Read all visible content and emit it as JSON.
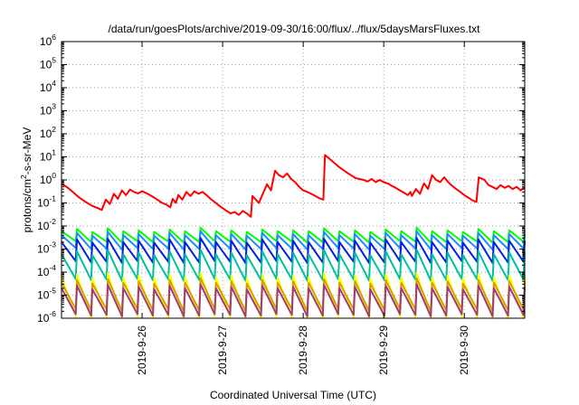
{
  "chart_data": {
    "type": "line",
    "title": "/data/run/goesPlots/archive/2019-09-30/16:00/flux/../flux/5daysMarsFluxes.txt",
    "xlabel": "Coordinated Universal Time (UTC)",
    "ylabel": "protons/cm2-s-sr-MeV",
    "ylabel_parts": [
      "protons/cm",
      "2",
      "-s-sr-MeV"
    ],
    "yscale": "log",
    "ylim": [
      "1e-6",
      "1e6"
    ],
    "ytick_exponents": [
      -6,
      -5,
      -4,
      -3,
      -2,
      -1,
      0,
      1,
      2,
      3,
      4,
      5,
      6
    ],
    "ytick_base": "10",
    "xlim_days": [
      25.0,
      30.75
    ],
    "x_ticks": [
      {
        "day": 26,
        "label": "2019-9-26"
      },
      {
        "day": 27,
        "label": "2019-9-27"
      },
      {
        "day": 28,
        "label": "2019-9-28"
      },
      {
        "day": 29,
        "label": "2019-9-29"
      },
      {
        "day": 30,
        "label": "2019-9-30"
      }
    ],
    "grid": true,
    "series": [
      {
        "color": "#ff0000",
        "width": 2,
        "points": [
          [
            25.0,
            0.7
          ],
          [
            25.08,
            0.45
          ],
          [
            25.15,
            0.28
          ],
          [
            25.22,
            0.17
          ],
          [
            25.3,
            0.11
          ],
          [
            25.38,
            0.075
          ],
          [
            25.45,
            0.06
          ],
          [
            25.5,
            0.05
          ],
          [
            25.55,
            0.14
          ],
          [
            25.6,
            0.09
          ],
          [
            25.65,
            0.25
          ],
          [
            25.7,
            0.15
          ],
          [
            25.75,
            0.35
          ],
          [
            25.8,
            0.22
          ],
          [
            25.85,
            0.38
          ],
          [
            25.9,
            0.3
          ],
          [
            25.95,
            0.26
          ],
          [
            26.0,
            0.32
          ],
          [
            26.08,
            0.24
          ],
          [
            26.15,
            0.17
          ],
          [
            26.2,
            0.13
          ],
          [
            26.25,
            0.1
          ],
          [
            26.3,
            0.085
          ],
          [
            26.35,
            0.065
          ],
          [
            26.38,
            0.15
          ],
          [
            26.42,
            0.1
          ],
          [
            26.45,
            0.22
          ],
          [
            26.5,
            0.14
          ],
          [
            26.55,
            0.3
          ],
          [
            26.6,
            0.2
          ],
          [
            26.65,
            0.32
          ],
          [
            26.7,
            0.25
          ],
          [
            26.75,
            0.3
          ],
          [
            26.8,
            0.22
          ],
          [
            26.85,
            0.15
          ],
          [
            26.9,
            0.11
          ],
          [
            26.95,
            0.08
          ],
          [
            27.0,
            0.06
          ],
          [
            27.05,
            0.045
          ],
          [
            27.1,
            0.035
          ],
          [
            27.15,
            0.04
          ],
          [
            27.2,
            0.03
          ],
          [
            27.25,
            0.045
          ],
          [
            27.3,
            0.035
          ],
          [
            27.35,
            0.025
          ],
          [
            27.37,
            0.2
          ],
          [
            27.45,
            0.1
          ],
          [
            27.55,
            0.65
          ],
          [
            27.6,
            0.35
          ],
          [
            27.65,
            2.5
          ],
          [
            27.7,
            1.6
          ],
          [
            27.75,
            1.3
          ],
          [
            27.8,
            1.9
          ],
          [
            27.85,
            1.1
          ],
          [
            27.9,
            0.8
          ],
          [
            27.95,
            0.5
          ],
          [
            28.0,
            0.35
          ],
          [
            28.05,
            0.3
          ],
          [
            28.1,
            0.25
          ],
          [
            28.15,
            0.2
          ],
          [
            28.2,
            0.16
          ],
          [
            28.25,
            0.14
          ],
          [
            28.27,
            12.0
          ],
          [
            28.35,
            7.0
          ],
          [
            28.45,
            3.5
          ],
          [
            28.55,
            2.0
          ],
          [
            28.65,
            1.2
          ],
          [
            28.75,
            1.0
          ],
          [
            28.8,
            0.85
          ],
          [
            28.85,
            1.1
          ],
          [
            28.9,
            0.8
          ],
          [
            28.95,
            1.0
          ],
          [
            29.0,
            0.8
          ],
          [
            29.05,
            0.7
          ],
          [
            29.1,
            0.55
          ],
          [
            29.15,
            0.45
          ],
          [
            29.2,
            0.35
          ],
          [
            29.25,
            0.28
          ],
          [
            29.3,
            0.22
          ],
          [
            29.33,
            0.3
          ],
          [
            29.35,
            0.2
          ],
          [
            29.4,
            0.4
          ],
          [
            29.45,
            0.25
          ],
          [
            29.5,
            0.7
          ],
          [
            29.55,
            0.4
          ],
          [
            29.6,
            1.6
          ],
          [
            29.65,
            1.0
          ],
          [
            29.7,
            0.8
          ],
          [
            29.75,
            1.3
          ],
          [
            29.8,
            0.8
          ],
          [
            29.85,
            0.55
          ],
          [
            29.9,
            0.4
          ],
          [
            29.95,
            0.3
          ],
          [
            30.0,
            0.22
          ],
          [
            30.05,
            0.17
          ],
          [
            30.1,
            0.13
          ],
          [
            30.15,
            0.11
          ],
          [
            30.18,
            1.3
          ],
          [
            30.25,
            1.0
          ],
          [
            30.3,
            0.6
          ],
          [
            30.35,
            0.5
          ],
          [
            30.4,
            0.4
          ],
          [
            30.45,
            0.6
          ],
          [
            30.5,
            0.45
          ],
          [
            30.55,
            0.55
          ],
          [
            30.6,
            0.4
          ],
          [
            30.65,
            0.5
          ],
          [
            30.7,
            0.35
          ],
          [
            30.75,
            0.5
          ]
        ]
      },
      {
        "color": "#00ff00",
        "width": 2,
        "sawtooth": true,
        "peaks": [
          0.006,
          0.0075,
          0.0055,
          0.008,
          0.006,
          0.0065,
          0.0055,
          0.007,
          0.006,
          0.0085,
          0.006,
          0.0065,
          0.0055,
          0.007,
          0.006,
          0.0065,
          0.006,
          0.008,
          0.006,
          0.0065,
          0.0055,
          0.007,
          0.006,
          0.0085,
          0.006,
          0.0065,
          0.0055,
          0.0075,
          0.006,
          0.0065
        ],
        "troughs": [
          0.0022,
          0.002,
          0.0021,
          0.0019,
          0.0022,
          0.002,
          0.0021,
          0.0019,
          0.002,
          0.0022,
          0.0021,
          0.0019,
          0.002,
          0.0022,
          0.0021,
          0.0019,
          0.002,
          0.0022,
          0.0021,
          0.0019,
          0.002,
          0.0022,
          0.0021,
          0.0019,
          0.002,
          0.0022,
          0.0021,
          0.0019,
          0.002,
          0.0021
        ]
      },
      {
        "color": "#1e8cff",
        "width": 2,
        "sawtooth": true,
        "peaks": [
          0.004,
          0.005,
          0.0038,
          0.0055,
          0.004,
          0.0045,
          0.0038,
          0.005,
          0.004,
          0.006,
          0.004,
          0.0045,
          0.0038,
          0.005,
          0.004,
          0.0045,
          0.004,
          0.0055,
          0.004,
          0.0045,
          0.0038,
          0.005,
          0.004,
          0.006,
          0.004,
          0.0045,
          0.0038,
          0.005,
          0.004,
          0.0045
        ],
        "troughs": [
          0.0011,
          0.001,
          0.00105,
          0.00095,
          0.0011,
          0.001,
          0.00105,
          0.00095,
          0.001,
          0.0011,
          0.00105,
          0.00095,
          0.001,
          0.0011,
          0.00105,
          0.00095,
          0.001,
          0.0011,
          0.00105,
          0.00095,
          0.001,
          0.0011,
          0.00105,
          0.00095,
          0.001,
          0.0011,
          0.00105,
          0.00095,
          0.001,
          0.00105
        ]
      },
      {
        "color": "#0020e0",
        "width": 2,
        "sawtooth": true,
        "peaks": [
          0.002,
          0.0026,
          0.0019,
          0.0028,
          0.002,
          0.0023,
          0.0019,
          0.0026,
          0.002,
          0.003,
          0.002,
          0.0023,
          0.0019,
          0.0026,
          0.002,
          0.0023,
          0.002,
          0.0028,
          0.002,
          0.0023,
          0.0019,
          0.0026,
          0.002,
          0.003,
          0.002,
          0.0023,
          0.0019,
          0.0026,
          0.002,
          0.0023
        ],
        "troughs": [
          0.0003,
          0.00026,
          0.00028,
          0.00025,
          0.0003,
          0.00026,
          0.00028,
          0.00025,
          0.00026,
          0.0003,
          0.00028,
          0.00025,
          0.00026,
          0.0003,
          0.00028,
          0.00025,
          0.00026,
          0.0003,
          0.00028,
          0.00025,
          0.00026,
          0.0003,
          0.00028,
          0.00025,
          0.00026,
          0.0003,
          0.00028,
          0.00025,
          0.00026,
          0.00028
        ]
      },
      {
        "color": "#00c0a0",
        "width": 2,
        "sawtooth": true,
        "peaks": [
          0.0006,
          0.0008,
          0.00055,
          0.0009,
          0.0006,
          0.0007,
          0.00055,
          0.0008,
          0.0006,
          0.00095,
          0.0006,
          0.0007,
          0.00055,
          0.0008,
          0.0006,
          0.0007,
          0.0006,
          0.0009,
          0.0006,
          0.0007,
          0.00055,
          0.0008,
          0.0006,
          0.00095,
          0.0006,
          0.0007,
          0.00055,
          0.0008,
          0.0006,
          0.0007
        ],
        "troughs": [
          5e-05,
          4.5e-05,
          4.8e-05,
          4.2e-05,
          5e-05,
          4.5e-05,
          4.8e-05,
          4.2e-05,
          4.5e-05,
          5e-05,
          4.8e-05,
          4.2e-05,
          4.5e-05,
          5e-05,
          4.8e-05,
          4.2e-05,
          4.5e-05,
          5e-05,
          4.8e-05,
          4.2e-05,
          4.5e-05,
          5e-05,
          4.8e-05,
          4.2e-05,
          4.5e-05,
          5e-05,
          4.8e-05,
          4.2e-05,
          4.5e-05,
          4.8e-05
        ]
      },
      {
        "color": "#ffff00",
        "width": 2,
        "sawtooth": true,
        "peaks": [
          6e-05,
          8e-05,
          5.5e-05,
          9e-05,
          6e-05,
          7e-05,
          5.5e-05,
          8e-05,
          6e-05,
          9.5e-05,
          6e-05,
          7e-05,
          5.5e-05,
          8e-05,
          6e-05,
          7e-05,
          6e-05,
          9e-05,
          6e-05,
          7e-05,
          5.5e-05,
          8e-05,
          6e-05,
          9.5e-05,
          6e-05,
          7e-05,
          5.5e-05,
          8e-05,
          6e-05,
          7e-05
        ],
        "troughs": [
          1.2e-06,
          1e-06,
          1.1e-06,
          9e-07,
          1.2e-06,
          1e-06,
          1.1e-06,
          9e-07,
          1e-06,
          1.2e-06,
          1.1e-06,
          9e-07,
          1e-06,
          1.2e-06,
          1.1e-06,
          9e-07,
          1e-06,
          1.2e-06,
          1.1e-06,
          9e-07,
          1e-06,
          1.2e-06,
          1.1e-06,
          9e-07,
          1e-06,
          1.2e-06,
          1.1e-06,
          9e-07,
          1e-06,
          1.1e-06
        ]
      },
      {
        "color": "#d4a000",
        "width": 2,
        "sawtooth": true,
        "peaks": [
          3.5e-05,
          4.5e-05,
          3.2e-05,
          5e-05,
          3.5e-05,
          4e-05,
          3.2e-05,
          4.5e-05,
          3.5e-05,
          5.5e-05,
          3.5e-05,
          4e-05,
          3.2e-05,
          4.5e-05,
          3.5e-05,
          4e-05,
          3.5e-05,
          5e-05,
          3.5e-05,
          4e-05,
          3.2e-05,
          4.5e-05,
          3.5e-05,
          5.5e-05,
          3.5e-05,
          4e-05,
          3.2e-05,
          4.5e-05,
          3.5e-05,
          4e-05
        ],
        "troughs": [
          2.5e-06,
          2.2e-06,
          2.4e-06,
          2e-06,
          2.5e-06,
          2.2e-06,
          2.4e-06,
          2e-06,
          2.2e-06,
          2.5e-06,
          2.4e-06,
          2e-06,
          2.2e-06,
          2.5e-06,
          2.4e-06,
          2e-06,
          2.2e-06,
          2.5e-06,
          2.4e-06,
          2e-06,
          2.2e-06,
          2.5e-06,
          2.4e-06,
          2e-06,
          2.2e-06,
          2.5e-06,
          2.4e-06,
          2e-06,
          2.2e-06,
          2.4e-06
        ]
      },
      {
        "color": "#a03c78",
        "width": 2,
        "sawtooth": true,
        "peaks": [
          2e-05,
          2.6e-05,
          1.8e-05,
          2.8e-05,
          2e-05,
          2.3e-05,
          1.8e-05,
          2.6e-05,
          2e-05,
          3e-05,
          2e-05,
          2.3e-05,
          1.8e-05,
          2.6e-05,
          2e-05,
          2.3e-05,
          2e-05,
          2.8e-05,
          2e-05,
          2.3e-05,
          1.8e-05,
          2.6e-05,
          2e-05,
          3e-05,
          2e-05,
          2.3e-05,
          1.8e-05,
          2.6e-05,
          2e-05,
          2.3e-05
        ],
        "troughs": [
          1.5e-06,
          1.3e-06,
          1.4e-06,
          1.2e-06,
          1.5e-06,
          1.3e-06,
          1.4e-06,
          1.2e-06,
          1.3e-06,
          1.5e-06,
          1.4e-06,
          1.2e-06,
          1.3e-06,
          1.5e-06,
          1.4e-06,
          1.2e-06,
          1.3e-06,
          1.5e-06,
          1.4e-06,
          1.2e-06,
          1.3e-06,
          1.5e-06,
          1.4e-06,
          1.2e-06,
          1.3e-06,
          1.5e-06,
          1.4e-06,
          1.2e-06,
          1.3e-06,
          1.4e-06
        ]
      }
    ]
  }
}
